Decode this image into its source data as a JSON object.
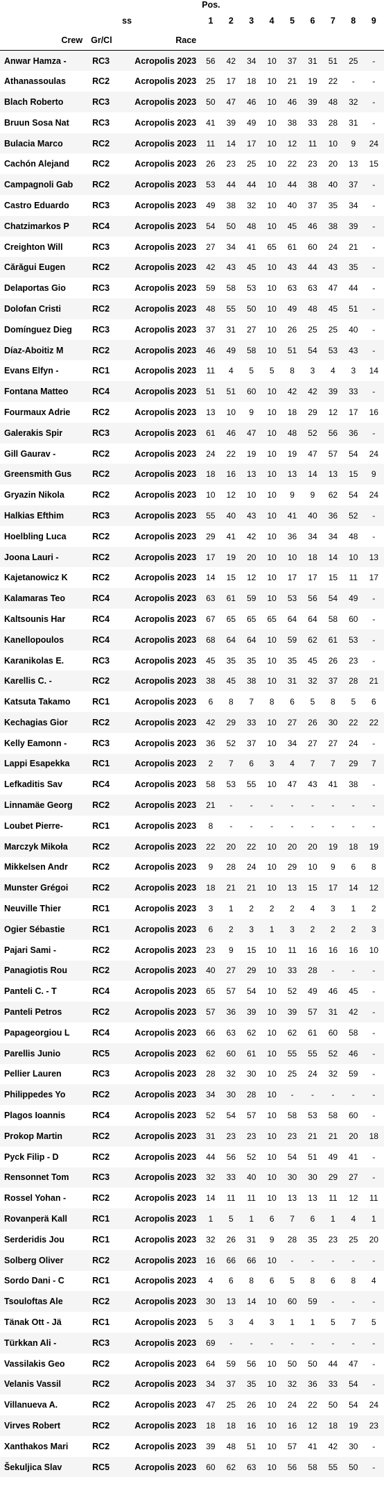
{
  "header": {
    "pos_label": "Pos.",
    "ss_label": "ss",
    "crew_label": "Crew",
    "grc_label": "Gr/Cl",
    "race_label": "Race",
    "positions": [
      "1",
      "2",
      "3",
      "4",
      "5",
      "6",
      "7",
      "8",
      "9"
    ]
  },
  "rows": [
    [
      "Anwar Hamza -",
      "RC3",
      "Acropolis 2023",
      "56",
      "42",
      "34",
      "10",
      "37",
      "31",
      "51",
      "25",
      "-"
    ],
    [
      "Athanassoulas",
      "RC2",
      "Acropolis 2023",
      "25",
      "17",
      "18",
      "10",
      "21",
      "19",
      "22",
      "-",
      "-"
    ],
    [
      "Blach Roberto",
      "RC3",
      "Acropolis 2023",
      "50",
      "47",
      "46",
      "10",
      "46",
      "39",
      "48",
      "32",
      "-"
    ],
    [
      "Bruun Sosa Nat",
      "RC3",
      "Acropolis 2023",
      "41",
      "39",
      "49",
      "10",
      "38",
      "33",
      "28",
      "31",
      "-"
    ],
    [
      "Bulacia Marco",
      "RC2",
      "Acropolis 2023",
      "11",
      "14",
      "17",
      "10",
      "12",
      "11",
      "10",
      "9",
      "24"
    ],
    [
      "Cachón Alejand",
      "RC2",
      "Acropolis 2023",
      "26",
      "23",
      "25",
      "10",
      "22",
      "23",
      "20",
      "13",
      "15"
    ],
    [
      "Campagnoli Gab",
      "RC2",
      "Acropolis 2023",
      "53",
      "44",
      "44",
      "10",
      "44",
      "38",
      "40",
      "37",
      "-"
    ],
    [
      "Castro Eduardo",
      "RC3",
      "Acropolis 2023",
      "49",
      "38",
      "32",
      "10",
      "40",
      "37",
      "35",
      "34",
      "-"
    ],
    [
      "Chatzimarkos P",
      "RC4",
      "Acropolis 2023",
      "54",
      "50",
      "48",
      "10",
      "45",
      "46",
      "38",
      "39",
      "-"
    ],
    [
      "Creighton Will",
      "RC3",
      "Acropolis 2023",
      "27",
      "34",
      "41",
      "65",
      "61",
      "60",
      "24",
      "21",
      "-"
    ],
    [
      "Cărăgui Eugen",
      "RC2",
      "Acropolis 2023",
      "42",
      "43",
      "45",
      "10",
      "43",
      "44",
      "43",
      "35",
      "-"
    ],
    [
      "Delaportas Gio",
      "RC3",
      "Acropolis 2023",
      "59",
      "58",
      "53",
      "10",
      "63",
      "63",
      "47",
      "44",
      "-"
    ],
    [
      "Dolofan Cristi",
      "RC2",
      "Acropolis 2023",
      "48",
      "55",
      "50",
      "10",
      "49",
      "48",
      "45",
      "51",
      "-"
    ],
    [
      "Domínguez Dieg",
      "RC3",
      "Acropolis 2023",
      "37",
      "31",
      "27",
      "10",
      "26",
      "25",
      "25",
      "40",
      "-"
    ],
    [
      "Díaz-Aboitiz M",
      "RC2",
      "Acropolis 2023",
      "46",
      "49",
      "58",
      "10",
      "51",
      "54",
      "53",
      "43",
      "-"
    ],
    [
      "Evans Elfyn -",
      "RC1",
      "Acropolis 2023",
      "11",
      "4",
      "5",
      "5",
      "8",
      "3",
      "4",
      "3",
      "14"
    ],
    [
      "Fontana Matteo",
      "RC4",
      "Acropolis 2023",
      "51",
      "51",
      "60",
      "10",
      "42",
      "42",
      "39",
      "33",
      "-"
    ],
    [
      "Fourmaux Adrie",
      "RC2",
      "Acropolis 2023",
      "13",
      "10",
      "9",
      "10",
      "18",
      "29",
      "12",
      "17",
      "16"
    ],
    [
      "Galerakis Spir",
      "RC3",
      "Acropolis 2023",
      "61",
      "46",
      "47",
      "10",
      "48",
      "52",
      "56",
      "36",
      "-"
    ],
    [
      "Gill Gaurav -",
      "RC2",
      "Acropolis 2023",
      "24",
      "22",
      "19",
      "10",
      "19",
      "47",
      "57",
      "54",
      "24"
    ],
    [
      "Greensmith Gus",
      "RC2",
      "Acropolis 2023",
      "18",
      "16",
      "13",
      "10",
      "13",
      "14",
      "13",
      "15",
      "9"
    ],
    [
      "Gryazin Nikola",
      "RC2",
      "Acropolis 2023",
      "10",
      "12",
      "10",
      "10",
      "9",
      "9",
      "62",
      "54",
      "24"
    ],
    [
      "Halkias Efthim",
      "RC3",
      "Acropolis 2023",
      "55",
      "40",
      "43",
      "10",
      "41",
      "40",
      "36",
      "52",
      "-"
    ],
    [
      "Hoelbling Luca",
      "RC2",
      "Acropolis 2023",
      "29",
      "41",
      "42",
      "10",
      "36",
      "34",
      "34",
      "48",
      "-"
    ],
    [
      "Joona Lauri -",
      "RC2",
      "Acropolis 2023",
      "17",
      "19",
      "20",
      "10",
      "10",
      "18",
      "14",
      "10",
      "13"
    ],
    [
      "Kajetanowicz K",
      "RC2",
      "Acropolis 2023",
      "14",
      "15",
      "12",
      "10",
      "17",
      "17",
      "15",
      "11",
      "17"
    ],
    [
      "Kalamaras Teo",
      "RC4",
      "Acropolis 2023",
      "63",
      "61",
      "59",
      "10",
      "53",
      "56",
      "54",
      "49",
      "-"
    ],
    [
      "Kaltsounis Har",
      "RC4",
      "Acropolis 2023",
      "67",
      "65",
      "65",
      "65",
      "64",
      "64",
      "58",
      "60",
      "-"
    ],
    [
      "Kanellopoulos",
      "RC4",
      "Acropolis 2023",
      "68",
      "64",
      "64",
      "10",
      "59",
      "62",
      "61",
      "53",
      "-"
    ],
    [
      "Karanikolas E.",
      "RC3",
      "Acropolis 2023",
      "45",
      "35",
      "35",
      "10",
      "35",
      "45",
      "26",
      "23",
      "-"
    ],
    [
      "Karellis C. -",
      "RC2",
      "Acropolis 2023",
      "38",
      "45",
      "38",
      "10",
      "31",
      "32",
      "37",
      "28",
      "21"
    ],
    [
      "Katsuta Takamo",
      "RC1",
      "Acropolis 2023",
      "6",
      "8",
      "7",
      "8",
      "6",
      "5",
      "8",
      "5",
      "6"
    ],
    [
      "Kechagias Gior",
      "RC2",
      "Acropolis 2023",
      "42",
      "29",
      "33",
      "10",
      "27",
      "26",
      "30",
      "22",
      "22"
    ],
    [
      "Kelly Eamonn -",
      "RC3",
      "Acropolis 2023",
      "36",
      "52",
      "37",
      "10",
      "34",
      "27",
      "27",
      "24",
      "-"
    ],
    [
      "Lappi Esapekka",
      "RC1",
      "Acropolis 2023",
      "2",
      "7",
      "6",
      "3",
      "4",
      "7",
      "7",
      "29",
      "7"
    ],
    [
      "Lefkaditis Sav",
      "RC4",
      "Acropolis 2023",
      "58",
      "53",
      "55",
      "10",
      "47",
      "43",
      "41",
      "38",
      "-"
    ],
    [
      "Linnamäe Georg",
      "RC2",
      "Acropolis 2023",
      "21",
      "-",
      "-",
      "-",
      "-",
      "-",
      "-",
      "-",
      "-"
    ],
    [
      "Loubet Pierre-",
      "RC1",
      "Acropolis 2023",
      "8",
      "-",
      "-",
      "-",
      "-",
      "-",
      "-",
      "-",
      "-"
    ],
    [
      "Marczyk Mikoła",
      "RC2",
      "Acropolis 2023",
      "22",
      "20",
      "22",
      "10",
      "20",
      "20",
      "19",
      "18",
      "19"
    ],
    [
      "Mikkelsen Andr",
      "RC2",
      "Acropolis 2023",
      "9",
      "28",
      "24",
      "10",
      "29",
      "10",
      "9",
      "6",
      "8"
    ],
    [
      "Munster Grégoi",
      "RC2",
      "Acropolis 2023",
      "18",
      "21",
      "21",
      "10",
      "13",
      "15",
      "17",
      "14",
      "12"
    ],
    [
      "Neuville Thier",
      "RC1",
      "Acropolis 2023",
      "3",
      "1",
      "2",
      "2",
      "2",
      "4",
      "3",
      "1",
      "2"
    ],
    [
      "Ogier Sébastie",
      "RC1",
      "Acropolis 2023",
      "6",
      "2",
      "3",
      "1",
      "3",
      "2",
      "2",
      "2",
      "3"
    ],
    [
      "Pajari Sami -",
      "RC2",
      "Acropolis 2023",
      "23",
      "9",
      "15",
      "10",
      "11",
      "16",
      "16",
      "16",
      "10"
    ],
    [
      "Panagiotis Rou",
      "RC2",
      "Acropolis 2023",
      "40",
      "27",
      "29",
      "10",
      "33",
      "28",
      "-",
      "-",
      "-"
    ],
    [
      "Panteli C. - T",
      "RC4",
      "Acropolis 2023",
      "65",
      "57",
      "54",
      "10",
      "52",
      "49",
      "46",
      "45",
      "-"
    ],
    [
      "Panteli Petros",
      "RC2",
      "Acropolis 2023",
      "57",
      "36",
      "39",
      "10",
      "39",
      "57",
      "31",
      "42",
      "-"
    ],
    [
      "Papageorgiou L",
      "RC4",
      "Acropolis 2023",
      "66",
      "63",
      "62",
      "10",
      "62",
      "61",
      "60",
      "58",
      "-"
    ],
    [
      "Parellis Junio",
      "RC5",
      "Acropolis 2023",
      "62",
      "60",
      "61",
      "10",
      "55",
      "55",
      "52",
      "46",
      "-"
    ],
    [
      "Pellier Lauren",
      "RC3",
      "Acropolis 2023",
      "28",
      "32",
      "30",
      "10",
      "25",
      "24",
      "32",
      "59",
      "-"
    ],
    [
      "Philippedes Yo",
      "RC2",
      "Acropolis 2023",
      "34",
      "30",
      "28",
      "10",
      "-",
      "-",
      "-",
      "-",
      "-"
    ],
    [
      "Plagos Ioannis",
      "RC4",
      "Acropolis 2023",
      "52",
      "54",
      "57",
      "10",
      "58",
      "53",
      "58",
      "60",
      "-"
    ],
    [
      "Prokop Martin",
      "RC2",
      "Acropolis 2023",
      "31",
      "23",
      "23",
      "10",
      "23",
      "21",
      "21",
      "20",
      "18"
    ],
    [
      "Pyck Filip - D",
      "RC2",
      "Acropolis 2023",
      "44",
      "56",
      "52",
      "10",
      "54",
      "51",
      "49",
      "41",
      "-"
    ],
    [
      "Rensonnet Tom",
      "RC3",
      "Acropolis 2023",
      "32",
      "33",
      "40",
      "10",
      "30",
      "30",
      "29",
      "27",
      "-"
    ],
    [
      "Rossel Yohan -",
      "RC2",
      "Acropolis 2023",
      "14",
      "11",
      "11",
      "10",
      "13",
      "13",
      "11",
      "12",
      "11"
    ],
    [
      "Rovanperä Kall",
      "RC1",
      "Acropolis 2023",
      "1",
      "5",
      "1",
      "6",
      "7",
      "6",
      "1",
      "4",
      "1"
    ],
    [
      "Serderidis Jou",
      "RC1",
      "Acropolis 2023",
      "32",
      "26",
      "31",
      "9",
      "28",
      "35",
      "23",
      "25",
      "20"
    ],
    [
      "Solberg Oliver",
      "RC2",
      "Acropolis 2023",
      "16",
      "66",
      "66",
      "10",
      "-",
      "-",
      "-",
      "-",
      "-"
    ],
    [
      "Sordo Dani - C",
      "RC1",
      "Acropolis 2023",
      "4",
      "6",
      "8",
      "6",
      "5",
      "8",
      "6",
      "8",
      "4"
    ],
    [
      "Tsouloftas Ale",
      "RC2",
      "Acropolis 2023",
      "30",
      "13",
      "14",
      "10",
      "60",
      "59",
      "-",
      "-",
      "-"
    ],
    [
      "Tänak Ott - Jä",
      "RC1",
      "Acropolis 2023",
      "5",
      "3",
      "4",
      "3",
      "1",
      "1",
      "5",
      "7",
      "5"
    ],
    [
      "Türkkan Ali -",
      "RC3",
      "Acropolis 2023",
      "69",
      "-",
      "-",
      "-",
      "-",
      "-",
      "-",
      "-",
      "-"
    ],
    [
      "Vassilakis Geo",
      "RC2",
      "Acropolis 2023",
      "64",
      "59",
      "56",
      "10",
      "50",
      "50",
      "44",
      "47",
      "-"
    ],
    [
      "Velanis Vassil",
      "RC2",
      "Acropolis 2023",
      "34",
      "37",
      "35",
      "10",
      "32",
      "36",
      "33",
      "54",
      "-"
    ],
    [
      "Villanueva A.",
      "RC2",
      "Acropolis 2023",
      "47",
      "25",
      "26",
      "10",
      "24",
      "22",
      "50",
      "54",
      "24"
    ],
    [
      "Virves Robert",
      "RC2",
      "Acropolis 2023",
      "18",
      "18",
      "16",
      "10",
      "16",
      "12",
      "18",
      "19",
      "23"
    ],
    [
      "Xanthakos Mari",
      "RC2",
      "Acropolis 2023",
      "39",
      "48",
      "51",
      "10",
      "57",
      "41",
      "42",
      "30",
      "-"
    ],
    [
      "Šekuljica Slav",
      "RC5",
      "Acropolis 2023",
      "60",
      "62",
      "63",
      "10",
      "56",
      "58",
      "55",
      "50",
      "-"
    ]
  ]
}
